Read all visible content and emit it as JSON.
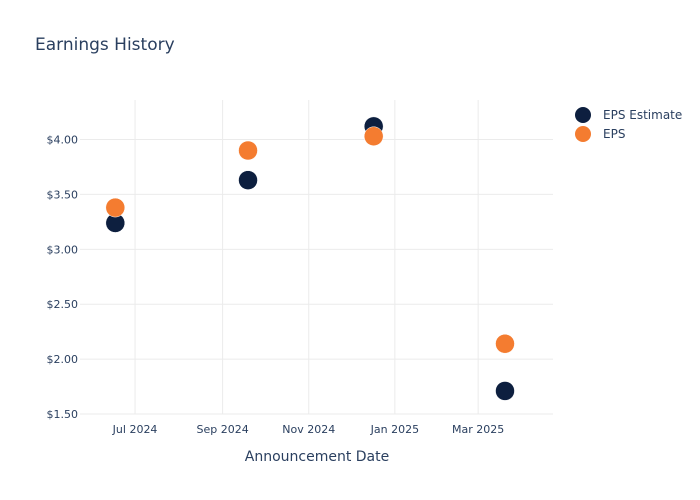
{
  "chart_data": {
    "type": "scatter",
    "title": "Earnings History",
    "xlabel": "Announcement Date",
    "ylabel": "",
    "x_type": "date",
    "xlim": [
      "2024-05-23",
      "2025-04-23"
    ],
    "ylim": [
      1.5,
      4.36
    ],
    "x_ticks": [
      {
        "value": "2024-07-01",
        "label": "Jul 2024"
      },
      {
        "value": "2024-09-01",
        "label": "Sep 2024"
      },
      {
        "value": "2024-11-01",
        "label": "Nov 2024"
      },
      {
        "value": "2025-01-01",
        "label": "Jan 2025"
      },
      {
        "value": "2025-03-01",
        "label": "Mar 2025"
      }
    ],
    "y_ticks": [
      {
        "value": 1.5,
        "label": "$1.50"
      },
      {
        "value": 2.0,
        "label": "$2.00"
      },
      {
        "value": 2.5,
        "label": "$2.50"
      },
      {
        "value": 3.0,
        "label": "$3.00"
      },
      {
        "value": 3.5,
        "label": "$3.50"
      },
      {
        "value": 4.0,
        "label": "$4.00"
      }
    ],
    "grid": true,
    "legend_position": "top-right",
    "series": [
      {
        "name": "EPS Estimate",
        "color": "#0d1f3f",
        "points": [
          {
            "x": "2024-06-17",
            "y": 3.24
          },
          {
            "x": "2024-09-19",
            "y": 3.63
          },
          {
            "x": "2024-12-17",
            "y": 4.12
          },
          {
            "x": "2025-03-20",
            "y": 1.71
          }
        ]
      },
      {
        "name": "EPS",
        "color": "#f47c30",
        "points": [
          {
            "x": "2024-06-17",
            "y": 3.38
          },
          {
            "x": "2024-09-19",
            "y": 3.9
          },
          {
            "x": "2024-12-17",
            "y": 4.03
          },
          {
            "x": "2025-03-20",
            "y": 2.14
          }
        ]
      }
    ]
  }
}
